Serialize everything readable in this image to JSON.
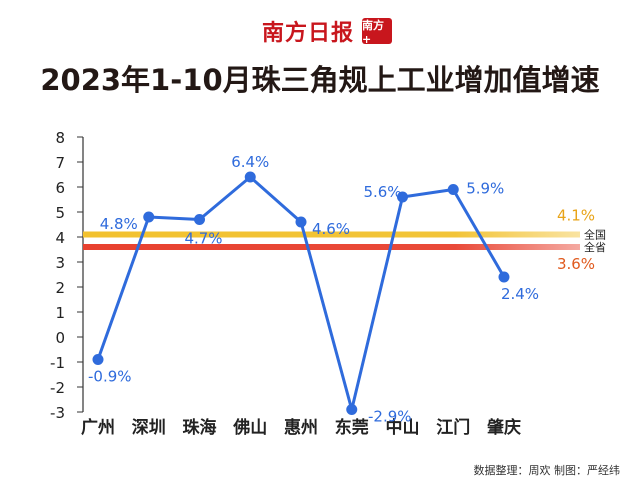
{
  "header": {
    "logo_text": "南方日报",
    "logo_seal": "南方+",
    "title": "2023年1-10月珠三角规上工业增加值增速"
  },
  "footer": {
    "source": "数据整理：周欢  制图：严经纬"
  },
  "colors": {
    "series": "#2f6bdc",
    "national": "#f2c12e",
    "provincial": "#e8412f",
    "national_label": "#e8a317",
    "provincial_label": "#e05a1e"
  },
  "chart_data": {
    "type": "line",
    "categories": [
      "广州",
      "深圳",
      "珠海",
      "佛山",
      "惠州",
      "东莞",
      "中山",
      "江门",
      "肇庆"
    ],
    "series": [
      {
        "values": [
          -0.9,
          4.8,
          4.7,
          6.4,
          4.6,
          -2.9,
          5.6,
          5.9,
          2.4
        ],
        "labels": [
          "-0.9%",
          "4.8%",
          "4.7%",
          "6.4%",
          "4.6%",
          "-2.9%",
          "5.6%",
          "5.9%",
          "2.4%"
        ]
      }
    ],
    "reference_lines": [
      {
        "name": "全国",
        "value": 4.1,
        "label": "4.1%"
      },
      {
        "name": "全省",
        "value": 3.6,
        "label": "3.6%"
      }
    ],
    "yticks": [
      "8",
      "7",
      "6",
      "5",
      "4",
      "3",
      "2",
      "1",
      "0",
      "-1",
      "-2",
      "-3"
    ],
    "ylim": [
      -3,
      8
    ],
    "grid": false,
    "xlabel": "",
    "ylabel": ""
  }
}
